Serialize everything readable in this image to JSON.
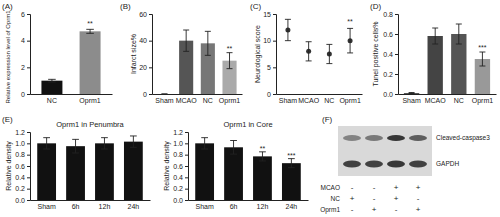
{
  "chart_data": [
    {
      "type": "bar",
      "panel": "(A)",
      "y_label": "Relative expression level of Oprm1",
      "categories": [
        "NC",
        "Oprm1"
      ],
      "values": [
        1.0,
        4.7
      ],
      "errors": [
        0.1,
        0.15
      ],
      "colors": [
        "#111111",
        "#8c8c8c"
      ],
      "ylim": [
        0,
        6
      ],
      "yticks": [
        0,
        2,
        4,
        6
      ],
      "annotations": [
        {
          "text": "**",
          "x": "Oprm1",
          "y": 5.1
        }
      ]
    },
    {
      "type": "bar",
      "panel": "(B)",
      "y_label": "Infarct size%",
      "categories": [
        "Sham",
        "MCAO",
        "NC",
        "Oprm1"
      ],
      "values": [
        0,
        40,
        38,
        25
      ],
      "errors": [
        0,
        8,
        9,
        6
      ],
      "colors": [
        "#555555",
        "#555555",
        "#777777",
        "#aaaaaa"
      ],
      "ylim": [
        0,
        60
      ],
      "yticks": [
        0,
        20,
        40,
        60
      ],
      "annotations": [
        {
          "text": "**",
          "x": "Oprm1",
          "y": 32
        }
      ]
    },
    {
      "type": "scatter",
      "panel": "(C)",
      "y_label": "Neurological score",
      "marker": "circle",
      "categories": [
        "Sham",
        "MCAO",
        "NC",
        "Oprm1"
      ],
      "values": [
        12,
        8,
        7.5,
        10
      ],
      "errors": [
        2,
        1.8,
        1.8,
        2.3
      ],
      "color": "#333333",
      "ylim": [
        0,
        15
      ],
      "yticks": [
        0,
        5,
        10,
        15
      ],
      "annotations": [
        {
          "text": "**",
          "x": "Oprm1",
          "y": 13.1
        }
      ]
    },
    {
      "type": "bar",
      "panel": "(D)",
      "y_label": "Tunel positive cells%",
      "categories": [
        "Sham",
        "MCAO",
        "NC",
        "Oprm1"
      ],
      "values": [
        0.01,
        0.58,
        0.6,
        0.35
      ],
      "errors": [
        0.005,
        0.08,
        0.1,
        0.07
      ],
      "colors": [
        "#555555",
        "#444444",
        "#555555",
        "#999999"
      ],
      "ylim": [
        0,
        0.8
      ],
      "yticks": [
        {
          "value": 0,
          "label": "0.0"
        },
        {
          "value": 0.2,
          "label": "0.2"
        },
        {
          "value": 0.4,
          "label": "0.4"
        },
        {
          "value": 0.6,
          "label": "0.6"
        },
        {
          "value": 0.8,
          "label": "0.8"
        }
      ],
      "annotations": [
        {
          "text": "***",
          "x": "Oprm1",
          "y": 0.44
        }
      ]
    },
    {
      "type": "bar",
      "panel": "(E)",
      "title": "Oprm1 in Penumbra",
      "y_label": "Relative density",
      "categories": [
        "Sham",
        "6h",
        "12h",
        "24h"
      ],
      "values": [
        1.0,
        0.95,
        1.0,
        1.03
      ],
      "errors": [
        0.1,
        0.12,
        0.1,
        0.1
      ],
      "color": "#111111",
      "ylim": [
        0,
        1.2
      ],
      "yticks": [
        {
          "value": 0,
          "label": "0.0"
        },
        {
          "value": 0.2,
          "label": "0.2"
        },
        {
          "value": 0.4,
          "label": "0.4"
        },
        {
          "value": 0.6,
          "label": "0.6"
        },
        {
          "value": 0.8,
          "label": "0.8"
        },
        {
          "value": 1.0,
          "label": "1.0"
        },
        {
          "value": 1.2,
          "label": "1.2"
        }
      ]
    },
    {
      "type": "bar",
      "title": "Oprm1 in Core",
      "y_label": "Relative density",
      "categories": [
        "Sham",
        "6h",
        "12h",
        "24h"
      ],
      "values": [
        1.0,
        0.93,
        0.77,
        0.65
      ],
      "errors": [
        0.1,
        0.12,
        0.08,
        0.08
      ],
      "color": "#111111",
      "ylim": [
        0,
        1.2
      ],
      "yticks": [
        {
          "value": 0,
          "label": "0.0"
        },
        {
          "value": 0.2,
          "label": "0.2"
        },
        {
          "value": 0.4,
          "label": "0.4"
        },
        {
          "value": 0.6,
          "label": "0.6"
        },
        {
          "value": 0.8,
          "label": "0.8"
        },
        {
          "value": 1.0,
          "label": "1.0"
        },
        {
          "value": 1.2,
          "label": "1.2"
        }
      ],
      "annotations": [
        {
          "text": "**",
          "x": "12h",
          "y": 0.87
        },
        {
          "text": "***",
          "x": "24h",
          "y": 0.75
        }
      ]
    }
  ],
  "blot": {
    "panel": "(F)",
    "bands": [
      "Cleaved-caspase3",
      "GAPDH"
    ],
    "rows": [
      {
        "label": "MCAO",
        "signs": [
          "-",
          "-",
          "+",
          "+"
        ]
      },
      {
        "label": "NC",
        "signs": [
          "+",
          "-",
          "+",
          "-"
        ]
      },
      {
        "label": "Oprm1",
        "signs": [
          "-",
          "+",
          "-",
          "+"
        ]
      }
    ]
  }
}
